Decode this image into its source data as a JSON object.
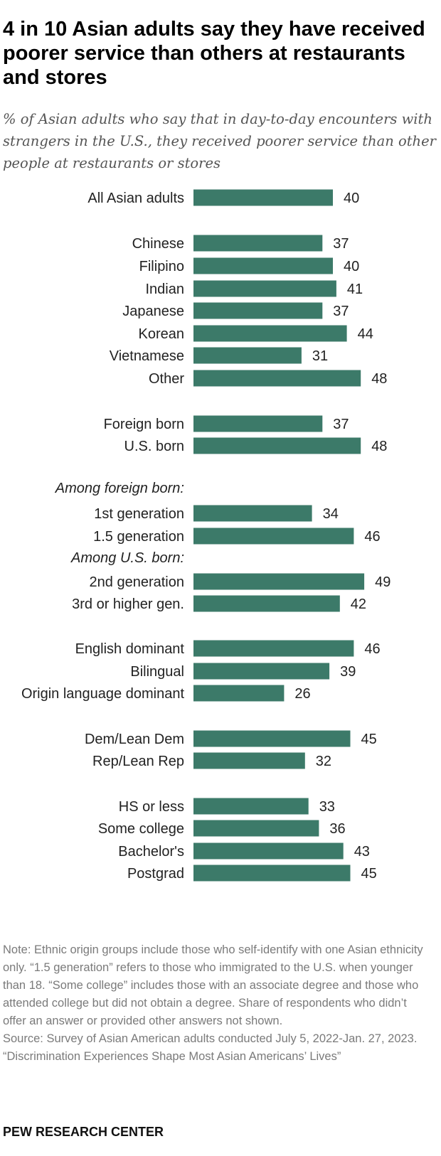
{
  "title": "4 in 10 Asian adults say they have received poorer service than others at restaurants and stores",
  "subtitle": "% of Asian adults who say that in day-to-day encounters with strangers in the U.S., they received poorer service than other people at restaurants or stores",
  "chart_data": {
    "type": "bar",
    "orientation": "horizontal",
    "bar_color": "#3c7a69",
    "group_labels": [
      "Among foreign born:",
      "Among U.S. born:"
    ],
    "categories": [
      "All Asian adults",
      "Chinese",
      "Filipino",
      "Indian",
      "Japanese",
      "Korean",
      "Vietnamese",
      "Other",
      "Foreign born",
      "U.S. born",
      "1st generation",
      "1.5 generation",
      "2nd generation",
      "3rd or higher gen.",
      "English dominant",
      "Bilingual",
      "Origin language dominant",
      "Dem/Lean Dem",
      "Rep/Lean Rep",
      "HS or less",
      "Some college",
      "Bachelor's",
      "Postgrad"
    ],
    "values": [
      40,
      37,
      40,
      41,
      37,
      44,
      31,
      48,
      37,
      48,
      34,
      46,
      49,
      42,
      46,
      39,
      26,
      45,
      32,
      33,
      36,
      43,
      45
    ]
  },
  "notes": {
    "note": "Note: Ethnic origin groups include those who self-identify with one Asian ethnicity only. “1.5 generation” refers to those who immigrated to the U.S. when younger than 18. “Some college” includes those with an associate degree and those who attended college but did not obtain a degree. Share of respondents who didn’t offer an answer or provided other answers not shown.",
    "source": "Source: Survey of Asian American adults conducted July 5, 2022-Jan. 27, 2023.",
    "report": "“Discrimination Experiences Shape Most Asian Americans’ Lives”"
  },
  "brand": "PEW RESEARCH CENTER"
}
